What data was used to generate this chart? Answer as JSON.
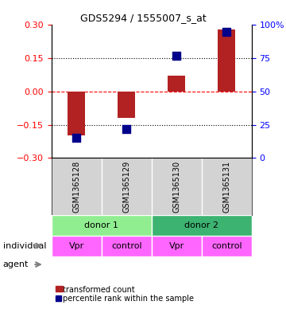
{
  "title": "GDS5294 / 1555007_s_at",
  "samples": [
    "GSM1365128",
    "GSM1365129",
    "GSM1365130",
    "GSM1365131"
  ],
  "transformed_counts": [
    -0.2,
    -0.12,
    0.07,
    0.28
  ],
  "percentile_ranks": [
    15,
    22,
    77,
    95
  ],
  "ylim_left": [
    -0.3,
    0.3
  ],
  "ylim_right": [
    0,
    100
  ],
  "yticks_left": [
    -0.3,
    -0.15,
    0,
    0.15,
    0.3
  ],
  "yticks_right": [
    0,
    25,
    50,
    75,
    100
  ],
  "bar_color": "#b22222",
  "dot_color": "#00008b",
  "bg_color": "#ffffff",
  "plot_bg": "#ffffff",
  "individual_labels": [
    "donor 1",
    "donor 2"
  ],
  "individual_colors": [
    "#90ee90",
    "#3cb371"
  ],
  "agent_labels": [
    "Vpr",
    "control",
    "Vpr",
    "control"
  ],
  "agent_color": "#ff66ff",
  "individual_green_light": "#90EE90",
  "individual_green_dark": "#3CB371",
  "sample_bg": "#d3d3d3",
  "hline_color": "#ff0000",
  "dotted_color": "#000000",
  "bar_width": 0.35,
  "dot_size": 60,
  "legend_red": "transformed count",
  "legend_blue": "percentile rank within the sample"
}
